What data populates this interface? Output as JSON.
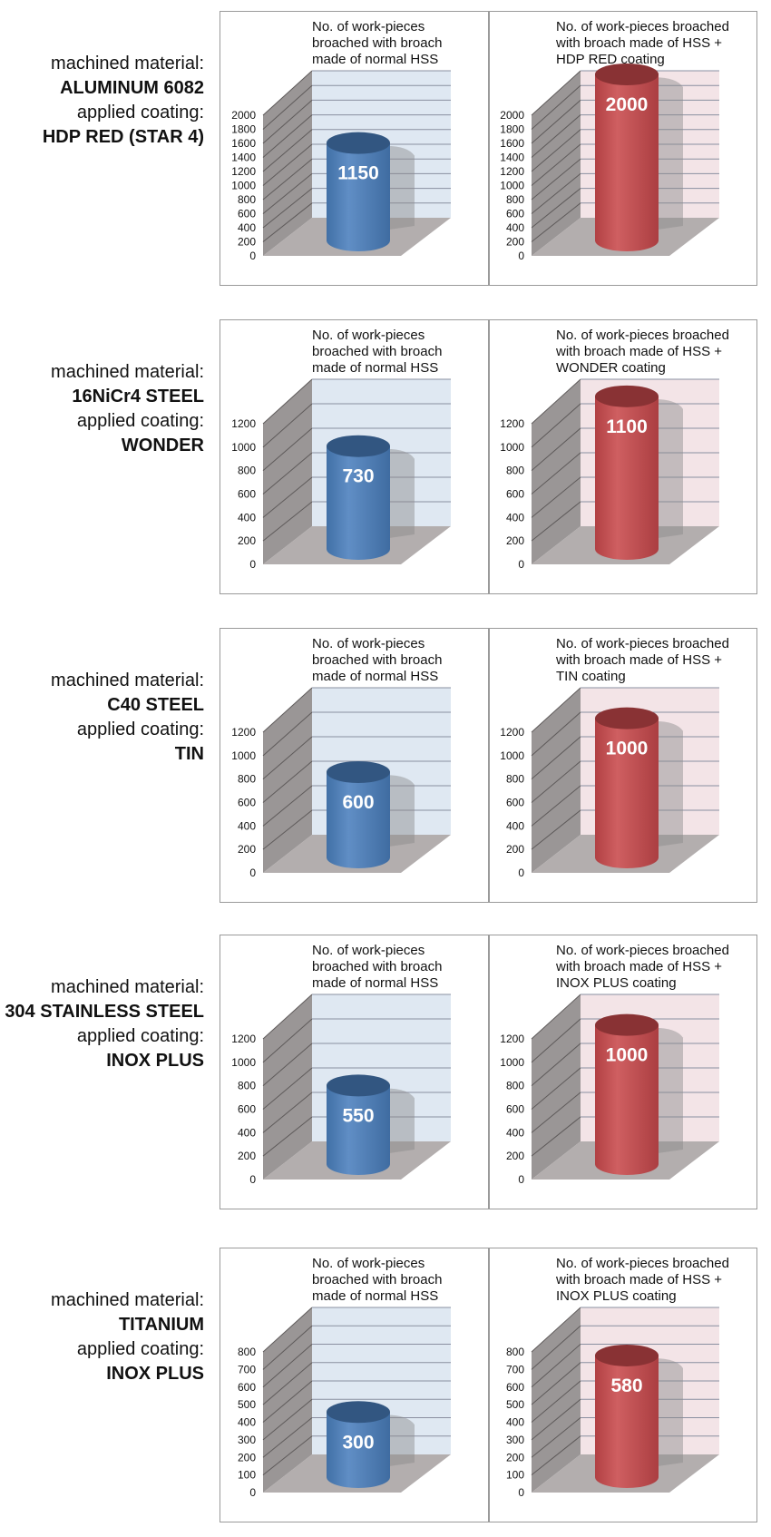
{
  "rows": [
    {
      "labels": [
        "machined material:",
        "ALUMINUM 6082",
        "applied coating:",
        "HDP RED (STAR 4)"
      ],
      "bold": [
        false,
        true,
        false,
        true
      ],
      "chart_data": [
        {
          "type": "bar",
          "title_lines": [
            "No. of work-pieces",
            "broached with broach",
            "made of normal HSS"
          ],
          "yticks": [
            0,
            200,
            400,
            600,
            800,
            1000,
            1200,
            1400,
            1600,
            1800,
            2000
          ],
          "ylim": [
            0,
            2000
          ],
          "values": [
            1150
          ],
          "value_labels": [
            "1150"
          ],
          "color": "#4a7fbd"
        },
        {
          "type": "bar",
          "title_lines": [
            "No. of work-pieces broached",
            "with broach made of HSS +",
            "HDP RED coating"
          ],
          "yticks": [
            0,
            200,
            400,
            600,
            800,
            1000,
            1200,
            1400,
            1600,
            1800,
            2000
          ],
          "ylim": [
            0,
            2000
          ],
          "values": [
            2000
          ],
          "value_labels": [
            "2000"
          ],
          "color": "#c9494c"
        }
      ]
    },
    {
      "labels": [
        "machined material:",
        "16NiCr4 STEEL",
        "applied coating:",
        "WONDER"
      ],
      "bold": [
        false,
        true,
        false,
        true
      ],
      "chart_data": [
        {
          "type": "bar",
          "title_lines": [
            "No. of work-pieces",
            "broached with broach",
            "made of normal HSS"
          ],
          "yticks": [
            0,
            200,
            400,
            600,
            800,
            1000,
            1200
          ],
          "ylim": [
            0,
            1200
          ],
          "values": [
            730
          ],
          "value_labels": [
            "730"
          ],
          "color": "#4a7fbd"
        },
        {
          "type": "bar",
          "title_lines": [
            "No. of work-pieces broached",
            "with broach made of HSS +",
            "WONDER coating"
          ],
          "yticks": [
            0,
            200,
            400,
            600,
            800,
            1000,
            1200
          ],
          "ylim": [
            0,
            1200
          ],
          "values": [
            1100
          ],
          "value_labels": [
            "1100"
          ],
          "color": "#c9494c"
        }
      ]
    },
    {
      "labels": [
        "machined material:",
        "C40 STEEL",
        "applied coating:",
        "TIN"
      ],
      "bold": [
        false,
        true,
        false,
        true
      ],
      "chart_data": [
        {
          "type": "bar",
          "title_lines": [
            "No. of work-pieces",
            "broached with broach",
            "made of normal HSS"
          ],
          "yticks": [
            0,
            200,
            400,
            600,
            800,
            1000,
            1200
          ],
          "ylim": [
            0,
            1200
          ],
          "values": [
            600
          ],
          "value_labels": [
            "600"
          ],
          "color": "#4a7fbd"
        },
        {
          "type": "bar",
          "title_lines": [
            "No. of work-pieces broached",
            "with broach made of HSS +",
            "TIN coating"
          ],
          "yticks": [
            0,
            200,
            400,
            600,
            800,
            1000,
            1200
          ],
          "ylim": [
            0,
            1200
          ],
          "values": [
            1000
          ],
          "value_labels": [
            "1000"
          ],
          "color": "#c9494c"
        }
      ]
    },
    {
      "labels": [
        "machined material:",
        "304 STAINLESS STEEL",
        "applied coating:",
        "INOX PLUS"
      ],
      "bold": [
        false,
        true,
        false,
        true
      ],
      "chart_data": [
        {
          "type": "bar",
          "title_lines": [
            "No. of work-pieces",
            "broached with broach",
            "made of normal HSS"
          ],
          "yticks": [
            0,
            200,
            400,
            600,
            800,
            1000,
            1200
          ],
          "ylim": [
            0,
            1200
          ],
          "values": [
            550
          ],
          "value_labels": [
            "550"
          ],
          "color": "#4a7fbd"
        },
        {
          "type": "bar",
          "title_lines": [
            "No. of work-pieces broached",
            "with broach made of HSS +",
            "INOX PLUS coating"
          ],
          "yticks": [
            0,
            200,
            400,
            600,
            800,
            1000,
            1200
          ],
          "ylim": [
            0,
            1200
          ],
          "values": [
            1000
          ],
          "value_labels": [
            "1000"
          ],
          "color": "#c9494c"
        }
      ]
    },
    {
      "labels": [
        "machined material:",
        "TITANIUM",
        "applied coating:",
        "INOX PLUS"
      ],
      "bold": [
        false,
        true,
        false,
        true
      ],
      "chart_data": [
        {
          "type": "bar",
          "title_lines": [
            "No. of work-pieces",
            "broached with broach",
            "made of normal HSS"
          ],
          "yticks": [
            0,
            100,
            200,
            300,
            400,
            500,
            600,
            700,
            800
          ],
          "ylim": [
            0,
            800
          ],
          "values": [
            300
          ],
          "value_labels": [
            "300"
          ],
          "color": "#4a7fbd"
        },
        {
          "type": "bar",
          "title_lines": [
            "No. of work-pieces broached",
            "with broach made of HSS +",
            "INOX PLUS coating"
          ],
          "yticks": [
            0,
            100,
            200,
            300,
            400,
            500,
            600,
            700,
            800
          ],
          "ylim": [
            0,
            800
          ],
          "values": [
            580
          ],
          "value_labels": [
            "580"
          ],
          "color": "#c9494c"
        }
      ]
    }
  ],
  "colors": {
    "blue_bar": "#4a7fbd",
    "red_bar": "#c9494c",
    "blue_wall": "#dfe8f2",
    "red_wall": "#f3e4e7",
    "side_wall": "#9a9696",
    "floor": "#b3aeae",
    "gridline": "#8a8fa0"
  }
}
